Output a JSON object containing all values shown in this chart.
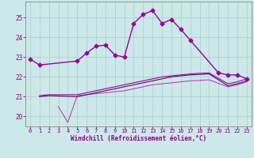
{
  "xlabel": "Windchill (Refroidissement éolien,°C)",
  "background_color": "#cce8e8",
  "grid_color": "#aacccc",
  "xlim": [
    -0.5,
    23.5
  ],
  "ylim": [
    19.5,
    25.8
  ],
  "yticks": [
    20,
    21,
    22,
    23,
    24,
    25
  ],
  "xticks": [
    0,
    1,
    2,
    3,
    4,
    5,
    6,
    7,
    8,
    9,
    10,
    11,
    12,
    13,
    14,
    15,
    16,
    17,
    18,
    19,
    20,
    21,
    22,
    23
  ],
  "series": [
    {
      "x": [
        0,
        1,
        5,
        6,
        7,
        8,
        9,
        10,
        11,
        12,
        13,
        14,
        15,
        16,
        17,
        20,
        21,
        22,
        23
      ],
      "y": [
        22.9,
        22.6,
        22.8,
        23.2,
        23.55,
        23.6,
        23.1,
        23.0,
        24.7,
        25.15,
        25.35,
        24.7,
        24.9,
        24.4,
        23.85,
        22.2,
        22.1,
        22.1,
        21.9
      ],
      "color": "#990099",
      "linewidth": 1.0,
      "marker": "D",
      "markersize": 2.5
    },
    {
      "x": [
        3,
        4,
        5,
        6,
        7,
        8,
        9,
        10,
        11,
        12,
        13,
        14,
        15,
        16,
        17,
        18,
        19,
        21,
        22,
        23
      ],
      "y": [
        20.5,
        19.7,
        21.05,
        21.1,
        21.15,
        21.2,
        21.25,
        21.3,
        21.4,
        21.5,
        21.6,
        21.65,
        21.7,
        21.75,
        21.8,
        21.82,
        21.85,
        21.5,
        21.6,
        21.75
      ],
      "color": "#bb44bb",
      "linewidth": 0.8,
      "marker": null,
      "markersize": 0
    },
    {
      "x": [
        1,
        2,
        5,
        6,
        7,
        8,
        9,
        10,
        11,
        12,
        13,
        14,
        15,
        16,
        17,
        18,
        19,
        21,
        22,
        23
      ],
      "y": [
        21.05,
        21.1,
        21.1,
        21.2,
        21.3,
        21.4,
        21.5,
        21.6,
        21.7,
        21.8,
        21.9,
        22.0,
        22.05,
        22.1,
        22.15,
        22.18,
        22.2,
        21.65,
        21.75,
        21.9
      ],
      "color": "#990099",
      "linewidth": 0.8,
      "marker": null,
      "markersize": 0
    },
    {
      "x": [
        1,
        2,
        5,
        6,
        7,
        8,
        9,
        10,
        11,
        12,
        13,
        14,
        15,
        16,
        17,
        18,
        19,
        21,
        22,
        23
      ],
      "y": [
        21.0,
        21.05,
        21.0,
        21.1,
        21.2,
        21.3,
        21.4,
        21.5,
        21.6,
        21.7,
        21.8,
        21.9,
        22.0,
        22.05,
        22.1,
        22.12,
        22.15,
        21.55,
        21.65,
        21.8
      ],
      "color": "#660066",
      "linewidth": 0.8,
      "marker": null,
      "markersize": 0
    }
  ]
}
